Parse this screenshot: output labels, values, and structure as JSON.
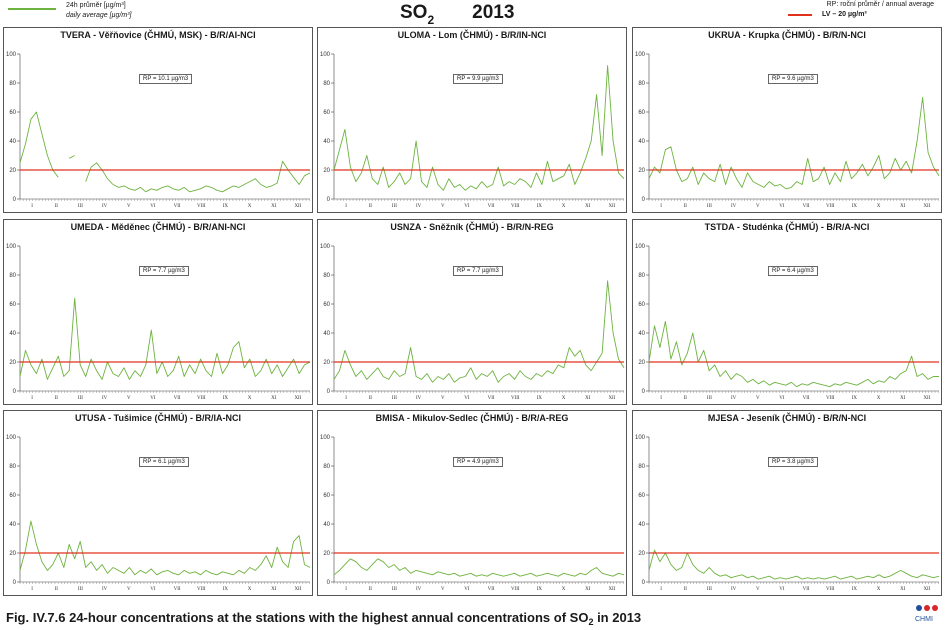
{
  "header": {
    "legend_line1": "24h průměr [µg/m³]",
    "legend_line2": "daily average [µg/m³]",
    "title_main": "SO",
    "title_sub": "2",
    "title_year": "2013",
    "legend_rp": "RP: roční průměr / annual average",
    "legend_lv": "LV – 20 µg/m³"
  },
  "colors": {
    "series": "#6db33f",
    "limit": "#e0301e",
    "axis": "#444444"
  },
  "chart_data": [
    {
      "type": "line",
      "title": "TVERA - Věřňovice (ČHMÚ, MSK) - B/R/AI-NCI",
      "annotation": "RP = 10.1 µg/m3",
      "ylim": [
        0,
        100
      ],
      "yticks": [
        0,
        20,
        40,
        60,
        80,
        100
      ],
      "months": [
        "I",
        "II",
        "III",
        "IV",
        "V",
        "VI",
        "VII",
        "VIII",
        "IX",
        "X",
        "XI",
        "XII"
      ],
      "limit_value": 20,
      "series": [
        {
          "values": [
            25,
            38,
            55,
            60,
            45,
            30,
            20,
            15,
            null,
            28,
            30,
            null,
            12,
            22,
            25,
            20,
            14,
            10,
            8,
            9,
            7,
            6,
            8,
            5,
            7,
            6,
            8,
            9,
            7,
            6,
            8,
            5,
            6,
            7,
            9,
            8,
            6,
            5,
            7,
            9,
            8,
            10,
            12,
            14,
            10,
            8,
            9,
            11,
            26,
            20,
            15,
            10,
            16,
            18
          ]
        }
      ]
    },
    {
      "type": "line",
      "title": "ULOMA - Lom (ČHMÚ) - B/R/IN-NCI",
      "annotation": "RP = 9.9 µg/m3",
      "ylim": [
        0,
        100
      ],
      "yticks": [
        0,
        20,
        40,
        60,
        80,
        100
      ],
      "months": [
        "I",
        "II",
        "III",
        "IV",
        "V",
        "VI",
        "VII",
        "VIII",
        "IX",
        "X",
        "XI",
        "XII"
      ],
      "limit_value": 20,
      "series": [
        {
          "values": [
            20,
            34,
            48,
            22,
            12,
            18,
            30,
            14,
            10,
            22,
            8,
            12,
            18,
            10,
            14,
            40,
            12,
            8,
            22,
            10,
            6,
            14,
            8,
            10,
            6,
            9,
            7,
            12,
            8,
            10,
            22,
            9,
            12,
            10,
            14,
            12,
            8,
            18,
            10,
            26,
            12,
            14,
            16,
            24,
            10,
            18,
            28,
            40,
            72,
            30,
            92,
            40,
            18,
            14
          ]
        }
      ]
    },
    {
      "type": "line",
      "title": "UKRUA - Krupka (ČHMÚ) - B/R/N-NCI",
      "annotation": "RP = 9.6 µg/m3",
      "ylim": [
        0,
        100
      ],
      "yticks": [
        0,
        20,
        40,
        60,
        80,
        100
      ],
      "months": [
        "I",
        "II",
        "III",
        "IV",
        "V",
        "VI",
        "VII",
        "VIII",
        "IX",
        "X",
        "XI",
        "XII"
      ],
      "limit_value": 20,
      "series": [
        {
          "values": [
            14,
            22,
            18,
            34,
            36,
            20,
            12,
            14,
            22,
            10,
            18,
            14,
            12,
            24,
            10,
            22,
            14,
            8,
            18,
            12,
            10,
            8,
            12,
            9,
            10,
            7,
            8,
            12,
            10,
            28,
            12,
            14,
            22,
            10,
            18,
            12,
            26,
            14,
            18,
            24,
            16,
            22,
            30,
            14,
            18,
            28,
            20,
            26,
            18,
            40,
            70,
            32,
            22,
            16
          ]
        }
      ]
    },
    {
      "type": "line",
      "title": "UMEDA - Měděnec (ČHMÚ) - B/R/ANI-NCI",
      "annotation": "RP = 7.7 µg/m3",
      "ylim": [
        0,
        100
      ],
      "yticks": [
        0,
        20,
        40,
        60,
        80,
        100
      ],
      "months": [
        "I",
        "II",
        "III",
        "IV",
        "V",
        "VI",
        "VII",
        "VIII",
        "IX",
        "X",
        "XI",
        "XII"
      ],
      "limit_value": 20,
      "series": [
        {
          "values": [
            10,
            28,
            18,
            12,
            22,
            8,
            16,
            24,
            10,
            14,
            64,
            18,
            10,
            22,
            14,
            8,
            20,
            12,
            10,
            16,
            8,
            14,
            10,
            18,
            42,
            12,
            20,
            10,
            14,
            24,
            10,
            18,
            12,
            22,
            14,
            10,
            26,
            12,
            18,
            30,
            34,
            16,
            22,
            10,
            14,
            22,
            12,
            18,
            10,
            16,
            22,
            12,
            18,
            20
          ]
        }
      ]
    },
    {
      "type": "line",
      "title": "USNZA - Sněžník (ČHMÚ) - B/R/N-REG",
      "annotation": "RP = 7.7 µg/m3",
      "ylim": [
        0,
        100
      ],
      "yticks": [
        0,
        20,
        40,
        60,
        80,
        100
      ],
      "months": [
        "I",
        "II",
        "III",
        "IV",
        "V",
        "VI",
        "VII",
        "VIII",
        "IX",
        "X",
        "XI",
        "XII"
      ],
      "limit_value": 20,
      "series": [
        {
          "values": [
            8,
            14,
            28,
            18,
            10,
            14,
            8,
            12,
            16,
            10,
            8,
            14,
            10,
            12,
            30,
            10,
            8,
            12,
            6,
            10,
            8,
            12,
            6,
            9,
            10,
            16,
            8,
            12,
            10,
            14,
            6,
            10,
            12,
            8,
            14,
            10,
            8,
            12,
            10,
            14,
            12,
            18,
            16,
            30,
            24,
            28,
            18,
            14,
            20,
            26,
            76,
            40,
            22,
            16
          ]
        }
      ]
    },
    {
      "type": "line",
      "title": "TSTDA - Studénka (ČHMÚ) - B/R/A-NCI",
      "annotation": "RP = 6.4 µg/m3",
      "ylim": [
        0,
        100
      ],
      "yticks": [
        0,
        20,
        40,
        60,
        80,
        100
      ],
      "months": [
        "I",
        "II",
        "III",
        "IV",
        "V",
        "VI",
        "VII",
        "VIII",
        "IX",
        "X",
        "XI",
        "XII"
      ],
      "limit_value": 20,
      "series": [
        {
          "values": [
            20,
            45,
            30,
            48,
            22,
            34,
            18,
            26,
            40,
            20,
            28,
            14,
            18,
            10,
            14,
            8,
            12,
            10,
            6,
            8,
            5,
            7,
            4,
            6,
            5,
            4,
            6,
            3,
            5,
            4,
            6,
            5,
            4,
            3,
            5,
            4,
            6,
            5,
            4,
            6,
            8,
            5,
            7,
            6,
            10,
            8,
            12,
            14,
            24,
            10,
            12,
            8,
            10,
            10
          ]
        }
      ]
    },
    {
      "type": "line",
      "title": "UTUSA - Tušimice (ČHMÚ) - B/R/IA-NCI",
      "annotation": "RP = 6.1 µg/m3",
      "ylim": [
        0,
        100
      ],
      "yticks": [
        0,
        20,
        40,
        60,
        80,
        100
      ],
      "months": [
        "I",
        "II",
        "III",
        "IV",
        "V",
        "VI",
        "VII",
        "VIII",
        "IX",
        "X",
        "XI",
        "XII"
      ],
      "limit_value": 20,
      "series": [
        {
          "values": [
            8,
            22,
            42,
            26,
            14,
            8,
            12,
            20,
            10,
            26,
            16,
            28,
            10,
            14,
            8,
            12,
            6,
            10,
            8,
            6,
            10,
            5,
            8,
            6,
            9,
            5,
            7,
            8,
            6,
            5,
            8,
            6,
            7,
            5,
            8,
            6,
            5,
            7,
            6,
            5,
            8,
            6,
            10,
            8,
            12,
            18,
            10,
            24,
            14,
            10,
            28,
            32,
            12,
            10
          ]
        }
      ]
    },
    {
      "type": "line",
      "title": "BMISA - Mikulov-Sedlec (ČHMÚ) - B/R/A-REG",
      "annotation": "RP = 4.9 µg/m3",
      "ylim": [
        0,
        100
      ],
      "yticks": [
        0,
        20,
        40,
        60,
        80,
        100
      ],
      "months": [
        "I",
        "II",
        "III",
        "IV",
        "V",
        "VI",
        "VII",
        "VIII",
        "IX",
        "X",
        "XI",
        "XII"
      ],
      "limit_value": 20,
      "series": [
        {
          "values": [
            5,
            8,
            12,
            16,
            14,
            10,
            8,
            12,
            16,
            14,
            10,
            12,
            8,
            10,
            6,
            8,
            7,
            6,
            5,
            7,
            6,
            5,
            6,
            4,
            5,
            6,
            4,
            5,
            4,
            6,
            5,
            4,
            5,
            6,
            4,
            5,
            6,
            4,
            5,
            6,
            5,
            4,
            6,
            5,
            4,
            6,
            5,
            8,
            10,
            6,
            5,
            4,
            6,
            5
          ]
        }
      ]
    },
    {
      "type": "line",
      "title": "MJESA - Jeseník (ČHMÚ) - B/R/N-NCI",
      "annotation": "RP = 3.8 µg/m3",
      "ylim": [
        0,
        100
      ],
      "yticks": [
        0,
        20,
        40,
        60,
        80,
        100
      ],
      "months": [
        "I",
        "II",
        "III",
        "IV",
        "V",
        "VI",
        "VII",
        "VIII",
        "IX",
        "X",
        "XI",
        "XII"
      ],
      "limit_value": 20,
      "series": [
        {
          "values": [
            8,
            22,
            14,
            20,
            12,
            8,
            10,
            20,
            12,
            8,
            6,
            10,
            6,
            4,
            5,
            3,
            4,
            5,
            3,
            4,
            2,
            3,
            4,
            2,
            3,
            2,
            3,
            4,
            2,
            3,
            2,
            3,
            2,
            3,
            4,
            2,
            3,
            4,
            2,
            3,
            4,
            3,
            5,
            3,
            4,
            6,
            8,
            6,
            4,
            3,
            5,
            4,
            3,
            4
          ]
        }
      ]
    }
  ],
  "caption": {
    "prefix": "Fig. IV.7.6  24-hour concentrations at the stations with the highest annual concentrations of SO",
    "sub": "2",
    "suffix": " in 2013"
  },
  "logo": {
    "text": "CHMI"
  }
}
